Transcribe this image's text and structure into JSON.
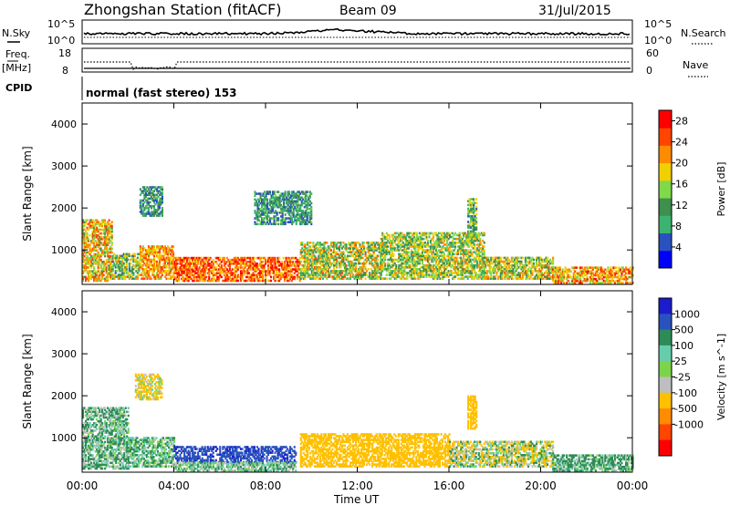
{
  "header": {
    "station": "Zhongshan Station (fitACF)",
    "beam": "Beam 09",
    "date": "31/Jul/2015"
  },
  "panel_labels": {
    "nsky": "N.Sky",
    "freq": "Freq.",
    "mhz": "[MHz]",
    "cpid": "CPID",
    "nsearch": "N.Search",
    "nave": "Nave",
    "mode": "normal (fast stereo) 153"
  },
  "tick_labels": {
    "noise_top": "10^5",
    "noise_bot": "10^0",
    "freq_top": "18",
    "freq_bot": "8",
    "nave_top": "60",
    "nave_bot": "0"
  },
  "colors": {
    "power_scale": [
      "#0000ff",
      "#2a52be",
      "#3cb371",
      "#3f8f4f",
      "#7fd94a",
      "#f0d000",
      "#ff8c00",
      "#ff4500",
      "#ff0000"
    ],
    "velocity_scale": [
      "#1c1ccc",
      "#2a52be",
      "#2e8b57",
      "#66cdaa",
      "#7cd44a",
      "#bebebe",
      "#ffc000",
      "#ff8c00",
      "#ff4500",
      "#ff0000"
    ],
    "velocity_ground": "#969696"
  },
  "chart_data": [
    {
      "type": "heatmap",
      "title": "",
      "quantity": "Power",
      "xlabel": "Time UT",
      "ylabel": "Slant Range [km]",
      "x_ticks": [
        "00:00",
        "04:00",
        "08:00",
        "12:00",
        "16:00",
        "20:00",
        "00:00"
      ],
      "xlim": [
        0,
        24
      ],
      "y_ticks": [
        1000,
        2000,
        3000,
        4000
      ],
      "ylim": [
        180,
        4500
      ],
      "colorbar": {
        "label": "Power [dB]",
        "ticks": [
          4,
          8,
          12,
          16,
          20,
          24,
          28
        ],
        "range": [
          0,
          30
        ]
      },
      "regions": [
        {
          "t0": 0.0,
          "t1": 1.3,
          "r0": 250,
          "r1": 1700,
          "p": [
            12,
            26
          ]
        },
        {
          "t0": 1.3,
          "t1": 2.5,
          "r0": 300,
          "r1": 900,
          "p": [
            6,
            22
          ]
        },
        {
          "t0": 2.5,
          "t1": 4.0,
          "r0": 300,
          "r1": 1100,
          "p": [
            16,
            26
          ]
        },
        {
          "t0": 4.0,
          "t1": 9.5,
          "r0": 250,
          "r1": 800,
          "p": [
            18,
            30
          ]
        },
        {
          "t0": 9.5,
          "t1": 13.0,
          "r0": 300,
          "r1": 1200,
          "p": [
            8,
            24
          ]
        },
        {
          "t0": 13.0,
          "t1": 17.5,
          "r0": 300,
          "r1": 1400,
          "p": [
            8,
            22
          ]
        },
        {
          "t0": 17.5,
          "t1": 20.5,
          "r0": 300,
          "r1": 800,
          "p": [
            10,
            24
          ]
        },
        {
          "t0": 20.5,
          "t1": 24.0,
          "r0": 200,
          "r1": 600,
          "p": [
            14,
            28
          ]
        },
        {
          "t0": 2.5,
          "t1": 3.5,
          "r0": 1800,
          "r1": 2500,
          "p": [
            4,
            14
          ]
        },
        {
          "t0": 7.5,
          "t1": 10.0,
          "r0": 1600,
          "r1": 2400,
          "p": [
            4,
            14
          ]
        },
        {
          "t0": 16.8,
          "t1": 17.2,
          "r0": 1200,
          "r1": 2200,
          "p": [
            6,
            20
          ]
        }
      ]
    },
    {
      "type": "heatmap",
      "title": "",
      "quantity": "Velocity",
      "xlabel": "Time UT",
      "ylabel": "Slant Range [km]",
      "x_ticks": [
        "00:00",
        "04:00",
        "08:00",
        "12:00",
        "16:00",
        "20:00",
        "00:00"
      ],
      "xlim": [
        0,
        24
      ],
      "y_ticks": [
        1000,
        2000,
        3000,
        4000
      ],
      "ylim": [
        180,
        4500
      ],
      "colorbar": {
        "label": "Velocity [m s^-1]",
        "ticks": [
          1000,
          500,
          100,
          25,
          -25,
          -100,
          -500,
          -1000
        ],
        "range": [
          -1200,
          1200
        ]
      },
      "regions": [
        {
          "t0": 0.0,
          "t1": 2.0,
          "r0": 250,
          "r1": 1700,
          "v": [
            -100,
            300
          ]
        },
        {
          "t0": 2.0,
          "t1": 4.0,
          "r0": 300,
          "r1": 1000,
          "v": [
            -50,
            200
          ]
        },
        {
          "t0": 4.0,
          "t1": 9.3,
          "r0": 400,
          "r1": 800,
          "v": [
            500,
            1100
          ]
        },
        {
          "t0": 4.0,
          "t1": 9.3,
          "r0": 200,
          "r1": 400,
          "v": [
            -100,
            200
          ]
        },
        {
          "t0": 9.5,
          "t1": 16.0,
          "r0": 300,
          "r1": 1100,
          "v": [
            -500,
            -100
          ]
        },
        {
          "t0": 16.0,
          "t1": 20.5,
          "r0": 300,
          "r1": 900,
          "v": [
            -300,
            200
          ]
        },
        {
          "t0": 20.5,
          "t1": 24.0,
          "r0": 200,
          "r1": 600,
          "v": [
            -50,
            300
          ]
        },
        {
          "t0": 2.3,
          "t1": 3.5,
          "r0": 1900,
          "r1": 2500,
          "v": [
            -300,
            50
          ]
        },
        {
          "t0": 16.8,
          "t1": 17.2,
          "r0": 1200,
          "r1": 2000,
          "v": [
            -500,
            -100
          ]
        }
      ]
    }
  ]
}
